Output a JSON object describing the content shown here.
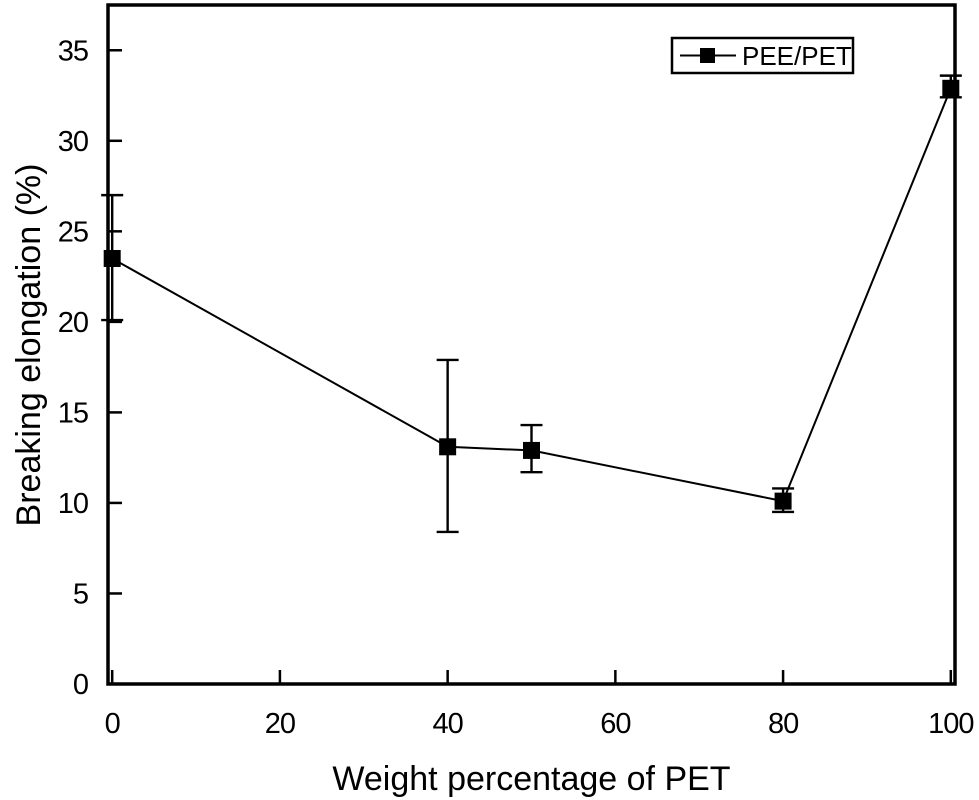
{
  "figure": {
    "background": "#ffffff",
    "ink_color": "#000000"
  },
  "legend": {
    "position": "top-right",
    "entries": [
      "PEE/PET"
    ],
    "marker": "filled-square-on-line"
  },
  "chart_data": {
    "type": "line",
    "title": "",
    "xlabel": "Weight percentage of PET",
    "ylabel": "Breaking elongation (%)",
    "xlim": [
      -0.5,
      100.5
    ],
    "ylim": [
      0,
      37.5
    ],
    "x_ticks": [
      0,
      20,
      40,
      60,
      80,
      100
    ],
    "y_ticks": [
      0,
      5,
      10,
      15,
      20,
      25,
      30,
      35
    ],
    "grid": false,
    "legend_position": "top-right",
    "series": [
      {
        "name": "PEE/PET",
        "color": "#000000",
        "marker": "filled-square",
        "x": [
          0,
          40,
          50,
          80,
          100
        ],
        "y": [
          23.5,
          13.1,
          12.9,
          10.1,
          32.9
        ],
        "error_plus": [
          3.5,
          4.8,
          1.4,
          0.7,
          0.7
        ],
        "error_minus": [
          3.4,
          4.7,
          1.2,
          0.6,
          0.5
        ]
      }
    ]
  }
}
